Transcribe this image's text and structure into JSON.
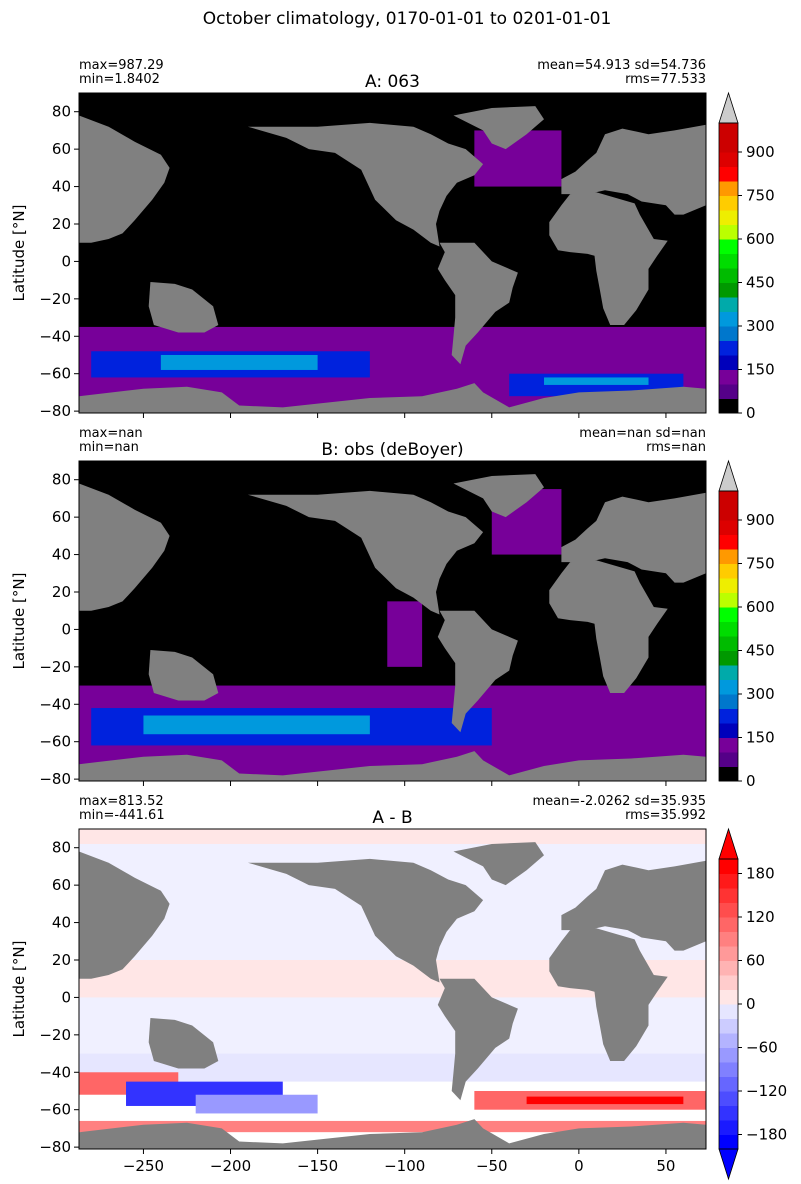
{
  "figure": {
    "suptitle": "October climatology, 0170-01-01 to 0201-01-01",
    "ocean_fill_dark": "#000000",
    "land_color": "#808080"
  },
  "chart_data": [
    {
      "type": "heatmap",
      "panel": "A",
      "title": "A: 063",
      "ylabel": "Latitude [°N]",
      "xlabel": "",
      "stats_left": [
        "max=987.29",
        "min=1.8402"
      ],
      "stats_right": [
        "mean=54.913 sd=54.736",
        "rms=77.533"
      ],
      "xlim": [
        -287,
        73
      ],
      "ylim": [
        -81,
        90
      ],
      "yticks": [
        80,
        60,
        40,
        20,
        0,
        -20,
        -40,
        -60,
        -80
      ],
      "yticklabels": [
        "80",
        "60",
        "40",
        "20",
        "0",
        "−20",
        "−40",
        "−60",
        "−80"
      ],
      "colorbar": {
        "range": [
          0,
          1000
        ],
        "extend": "max",
        "ticks": [
          0,
          150,
          300,
          450,
          600,
          750,
          900
        ],
        "ticklabels": [
          "0",
          "150",
          "300",
          "450",
          "600",
          "750",
          "900"
        ],
        "levels": [
          0,
          50,
          100,
          150,
          200,
          250,
          300,
          350,
          400,
          450,
          500,
          550,
          600,
          650,
          700,
          750,
          800,
          850,
          900,
          950,
          1000
        ],
        "colors": [
          "#000000",
          "#550088",
          "#770099",
          "#0000bb",
          "#0022dd",
          "#0077cc",
          "#0099dd",
          "#00aaaa",
          "#009900",
          "#00bb00",
          "#00dd00",
          "#00ff00",
          "#bbff00",
          "#eeee00",
          "#ffcc00",
          "#ff9900",
          "#ff0000",
          "#dd0000",
          "#cc0000",
          "#cc0000"
        ],
        "over_color": "#cccccc"
      },
      "description_bands": [
        {
          "lat": [
            -55,
            -35
          ],
          "value": 100
        },
        {
          "lat": [
            -62,
            -48
          ],
          "value": 230
        }
      ]
    },
    {
      "type": "heatmap",
      "panel": "B",
      "title": "B: obs (deBoyer)",
      "ylabel": "Latitude [°N]",
      "xlabel": "",
      "stats_left": [
        "max=nan",
        "min=nan"
      ],
      "stats_right": [
        "mean=nan sd=nan",
        "rms=nan"
      ],
      "xlim": [
        -287,
        73
      ],
      "ylim": [
        -81,
        90
      ],
      "yticks": [
        80,
        60,
        40,
        20,
        0,
        -20,
        -40,
        -60,
        -80
      ],
      "yticklabels": [
        "80",
        "60",
        "40",
        "20",
        "0",
        "−20",
        "−40",
        "−60",
        "−80"
      ],
      "colorbar": {
        "range": [
          0,
          1000
        ],
        "extend": "max",
        "ticks": [
          0,
          150,
          300,
          450,
          600,
          750,
          900
        ],
        "ticklabels": [
          "0",
          "150",
          "300",
          "450",
          "600",
          "750",
          "900"
        ],
        "levels": [
          0,
          50,
          100,
          150,
          200,
          250,
          300,
          350,
          400,
          450,
          500,
          550,
          600,
          650,
          700,
          750,
          800,
          850,
          900,
          950,
          1000
        ],
        "colors": [
          "#000000",
          "#550088",
          "#770099",
          "#0000bb",
          "#0022dd",
          "#0077cc",
          "#0099dd",
          "#00aaaa",
          "#009900",
          "#00bb00",
          "#00dd00",
          "#00ff00",
          "#bbff00",
          "#eeee00",
          "#ffcc00",
          "#ff9900",
          "#ff0000",
          "#dd0000",
          "#cc0000",
          "#cc0000"
        ],
        "over_color": "#cccccc"
      }
    },
    {
      "type": "heatmap",
      "panel": "A-B",
      "title": "A - B",
      "ylabel": "Latitude [°N]",
      "xlabel": "",
      "stats_left": [
        "max=813.52",
        "min=-441.61"
      ],
      "stats_right": [
        "mean=-2.0262 sd=35.935",
        "rms=35.992"
      ],
      "xlim": [
        -287,
        73
      ],
      "ylim": [
        -81,
        90
      ],
      "xticks": [
        -250,
        -200,
        -150,
        -100,
        -50,
        0,
        50
      ],
      "xticklabels": [
        "−250",
        "−200",
        "−150",
        "−100",
        "−50",
        "0",
        "50"
      ],
      "yticks": [
        80,
        60,
        40,
        20,
        0,
        -20,
        -40,
        -60,
        -80
      ],
      "yticklabels": [
        "80",
        "60",
        "40",
        "20",
        "0",
        "−20",
        "−40",
        "−60",
        "−80"
      ],
      "colorbar": {
        "range": [
          -200,
          200
        ],
        "extend": "both",
        "ticks": [
          -180,
          -120,
          -60,
          0,
          60,
          120,
          180
        ],
        "ticklabels": [
          "−180",
          "−120",
          "−60",
          "0",
          "60",
          "120",
          "180"
        ],
        "levels": [
          -200,
          -180,
          -160,
          -140,
          -120,
          -100,
          -80,
          -60,
          -40,
          -20,
          0,
          20,
          40,
          60,
          80,
          100,
          120,
          140,
          160,
          180,
          200
        ],
        "colors": [
          "#0000ff",
          "#1a1aff",
          "#3333ff",
          "#4d4dff",
          "#6666ff",
          "#8080ff",
          "#9999ff",
          "#b3b3ff",
          "#ccccff",
          "#e6e6ff",
          "#ffe6e6",
          "#ffcccc",
          "#ffb3b3",
          "#ff9999",
          "#ff8080",
          "#ff6666",
          "#ff4d4d",
          "#ff3333",
          "#ff1a1a",
          "#ff0000"
        ],
        "under_color": "#0000ff",
        "over_color": "#ff0000"
      }
    }
  ]
}
